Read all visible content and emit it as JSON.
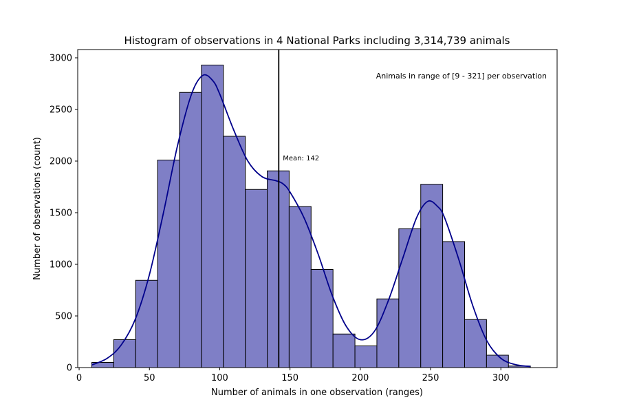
{
  "chart_data": {
    "type": "bar",
    "title": "Histogram of observations in 4 National Parks including 3,314,739 animals",
    "xlabel": "Number of animals in one observation (ranges)",
    "ylabel": "Number of observations (count)",
    "xlim": [
      -1,
      340
    ],
    "ylim": [
      0,
      3080
    ],
    "xticks": [
      0,
      50,
      100,
      150,
      200,
      250,
      300
    ],
    "yticks": [
      0,
      500,
      1000,
      1500,
      2000,
      2500,
      3000
    ],
    "bin_edges": [
      9,
      24.6,
      40.2,
      55.8,
      71.4,
      87,
      102.6,
      118.2,
      133.8,
      149.4,
      165,
      180.6,
      196.2,
      211.8,
      227.4,
      243,
      258.6,
      274.2,
      289.8,
      305.4,
      321
    ],
    "values": [
      50,
      270,
      845,
      2010,
      2665,
      2930,
      2240,
      1725,
      1905,
      1560,
      950,
      325,
      210,
      665,
      1345,
      1775,
      1220,
      465,
      120,
      15
    ],
    "kde": {
      "x": [
        9,
        20,
        30,
        40,
        50,
        60,
        70,
        80,
        88,
        95,
        100,
        110,
        120,
        130,
        140,
        145,
        150,
        160,
        170,
        180,
        190,
        200,
        210,
        220,
        230,
        240,
        248,
        255,
        260,
        270,
        280,
        290,
        300,
        310,
        321
      ],
      "y": [
        25,
        90,
        220,
        470,
        900,
        1500,
        2150,
        2650,
        2830,
        2780,
        2650,
        2300,
        2000,
        1850,
        1810,
        1780,
        1700,
        1450,
        1100,
        700,
        400,
        270,
        350,
        650,
        1050,
        1450,
        1610,
        1560,
        1450,
        1050,
        600,
        260,
        90,
        30,
        10
      ]
    },
    "mean": 142,
    "mean_label": "Mean: 142",
    "range_annotation": "Animals in range of [9 - 321] per observation",
    "colors": {
      "bar_fill": "#7f7fc6",
      "bar_edge": "#000000",
      "kde_line": "#00008b",
      "mean_line": "#000000"
    }
  }
}
